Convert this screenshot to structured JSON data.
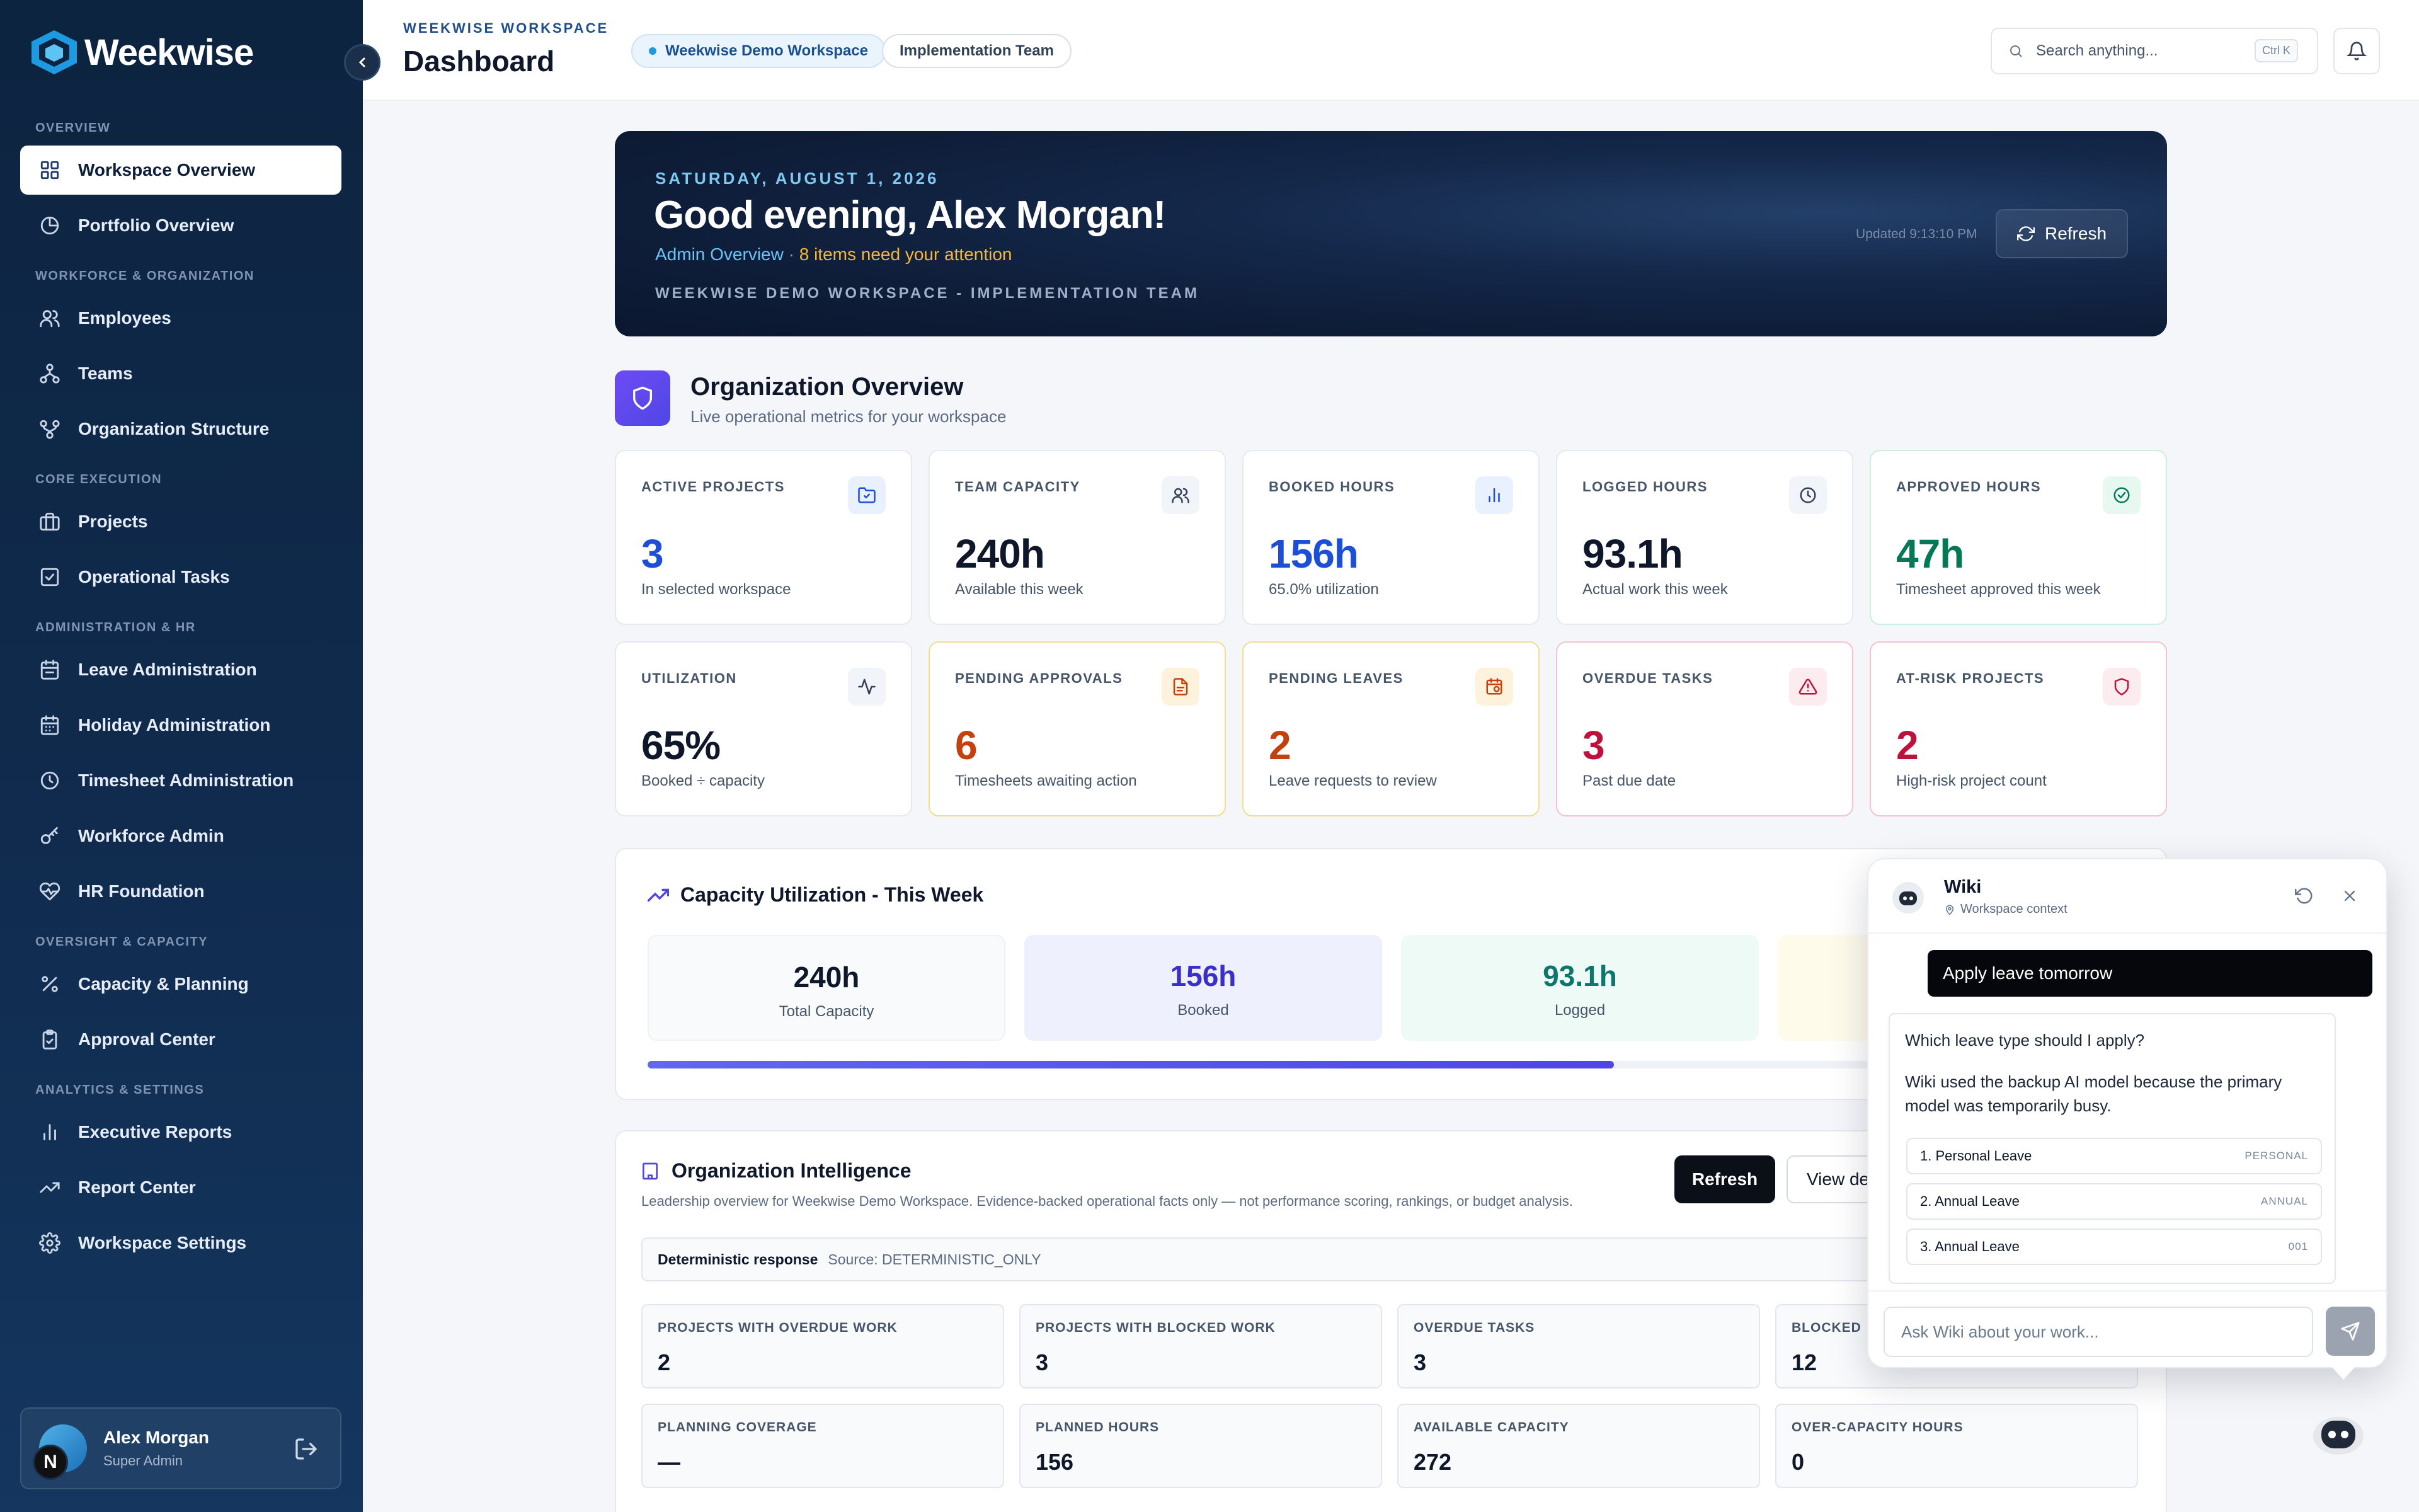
{
  "brand": {
    "name": "Weekwise"
  },
  "sidebar": {
    "sections": [
      {
        "title": "OVERVIEW",
        "items": [
          {
            "label": "Workspace Overview",
            "icon": "dashboard-icon",
            "active": true
          },
          {
            "label": "Portfolio Overview",
            "icon": "pie-chart-icon"
          }
        ]
      },
      {
        "title": "WORKFORCE & ORGANIZATION",
        "items": [
          {
            "label": "Employees",
            "icon": "users-icon"
          },
          {
            "label": "Teams",
            "icon": "network-icon"
          },
          {
            "label": "Organization Structure",
            "icon": "org-structure-icon"
          }
        ]
      },
      {
        "title": "CORE EXECUTION",
        "items": [
          {
            "label": "Projects",
            "icon": "briefcase-icon"
          },
          {
            "label": "Operational Tasks",
            "icon": "checkbox-icon"
          }
        ]
      },
      {
        "title": "ADMINISTRATION & HR",
        "items": [
          {
            "label": "Leave Administration",
            "icon": "calendar-icon"
          },
          {
            "label": "Holiday Administration",
            "icon": "calendar-grid-icon"
          },
          {
            "label": "Timesheet Administration",
            "icon": "clock-icon"
          },
          {
            "label": "Workforce Admin",
            "icon": "key-icon"
          },
          {
            "label": "HR Foundation",
            "icon": "heart-icon"
          }
        ]
      },
      {
        "title": "OVERSIGHT & CAPACITY",
        "items": [
          {
            "label": "Capacity & Planning",
            "icon": "percent-icon"
          },
          {
            "label": "Approval Center",
            "icon": "clipboard-check-icon"
          }
        ]
      },
      {
        "title": "ANALYTICS & SETTINGS",
        "items": [
          {
            "label": "Executive Reports",
            "icon": "bar-chart-icon"
          },
          {
            "label": "Report Center",
            "icon": "trend-icon"
          },
          {
            "label": "Workspace Settings",
            "icon": "gear-icon"
          }
        ]
      }
    ],
    "user": {
      "name": "Alex Morgan",
      "role": "Super Admin",
      "avatar_letter": "N"
    }
  },
  "header": {
    "breadcrumb": "WEEKWISE WORKSPACE",
    "title": "Dashboard",
    "workspace_chip": "Weekwise Demo Workspace",
    "team_chip": "Implementation Team",
    "search_placeholder": "Search anything...",
    "search_shortcut": "Ctrl K"
  },
  "hero": {
    "date": "SATURDAY, AUGUST 1, 2026",
    "greeting": "Good evening, Alex Morgan!",
    "role_link": "Admin Overview",
    "separator": " · ",
    "attention": "8 items need your attention",
    "workspace_line": "WEEKWISE DEMO WORKSPACE - IMPLEMENTATION TEAM",
    "updated": "Updated 9:13:10 PM",
    "refresh_label": "Refresh"
  },
  "overview": {
    "title": "Organization Overview",
    "subtitle": "Live operational metrics for your workspace",
    "cards": [
      {
        "label": "ACTIVE PROJECTS",
        "value": "3",
        "desc": "In selected workspace",
        "color": "#1d4ed8",
        "icon": "folder-icon",
        "variant": ""
      },
      {
        "label": "TEAM CAPACITY",
        "value": "240h",
        "desc": "Available this week",
        "color": "#0f172a",
        "icon": "users-icon",
        "variant": ""
      },
      {
        "label": "BOOKED HOURS",
        "value": "156h",
        "desc": "65.0% utilization",
        "color": "#1d4ed8",
        "icon": "bar-chart-icon",
        "variant": ""
      },
      {
        "label": "LOGGED HOURS",
        "value": "93.1h",
        "desc": "Actual work this week",
        "color": "#0f172a",
        "icon": "clock-icon",
        "variant": ""
      },
      {
        "label": "APPROVED HOURS",
        "value": "47h",
        "desc": "Timesheet approved this week",
        "color": "#047857",
        "icon": "check-circle-icon",
        "variant": "ok"
      },
      {
        "label": "UTILIZATION",
        "value": "65%",
        "desc": "Booked ÷ capacity",
        "color": "#0f172a",
        "icon": "activity-icon",
        "variant": ""
      },
      {
        "label": "PENDING APPROVALS",
        "value": "6",
        "desc": "Timesheets awaiting action",
        "color": "#c2410c",
        "icon": "document-icon",
        "variant": "warn"
      },
      {
        "label": "PENDING LEAVES",
        "value": "2",
        "desc": "Leave requests to review",
        "color": "#c2410c",
        "icon": "calendar-clock-icon",
        "variant": "warn"
      },
      {
        "label": "OVERDUE TASKS",
        "value": "3",
        "desc": "Past due date",
        "color": "#be123c",
        "icon": "alert-triangle-icon",
        "variant": "danger"
      },
      {
        "label": "AT-RISK PROJECTS",
        "value": "2",
        "desc": "High-risk project count",
        "color": "#be123c",
        "icon": "shield-icon",
        "variant": "danger"
      }
    ]
  },
  "capacity": {
    "title": "Capacity Utilization - This Week",
    "stats": [
      {
        "value": "240h",
        "label": "Total Capacity"
      },
      {
        "value": "156h",
        "label": "Booked"
      },
      {
        "value": "93.1h",
        "label": "Logged"
      }
    ],
    "progress_fraction": 0.65
  },
  "intelligence": {
    "title": "Organization Intelligence",
    "description": "Leadership overview for Weekwise Demo Workspace. Evidence-backed operational facts only — not performance scoring, rankings, or budget analysis.",
    "refresh_label": "Refresh",
    "view_label": "View details",
    "response_label": "Deterministic response",
    "source": "Source: DETERMINISTIC_ONLY",
    "metrics": [
      {
        "label": "PROJECTS WITH OVERDUE WORK",
        "value": "2"
      },
      {
        "label": "PROJECTS WITH BLOCKED WORK",
        "value": "3"
      },
      {
        "label": "OVERDUE TASKS",
        "value": "3"
      },
      {
        "label": "BLOCKED",
        "value": "12"
      },
      {
        "label": "PLANNING COVERAGE",
        "value": "—"
      },
      {
        "label": "PLANNED HOURS",
        "value": "156"
      },
      {
        "label": "AVAILABLE CAPACITY",
        "value": "272"
      },
      {
        "label": "OVER-CAPACITY HOURS",
        "value": "0"
      }
    ]
  },
  "wiki": {
    "title": "Wiki",
    "context": "Workspace context",
    "user_message": "Apply leave tomorrow",
    "reply_question": "Which leave type should I apply?",
    "reply_note": "Wiki used the backup AI model because the primary model was temporarily busy.",
    "options": [
      {
        "label": "1. Personal Leave",
        "tag": "PERSONAL"
      },
      {
        "label": "2. Annual Leave",
        "tag": "ANNUAL"
      },
      {
        "label": "3. Annual Leave",
        "tag": "001"
      }
    ],
    "input_placeholder": "Ask Wiki about your work..."
  }
}
